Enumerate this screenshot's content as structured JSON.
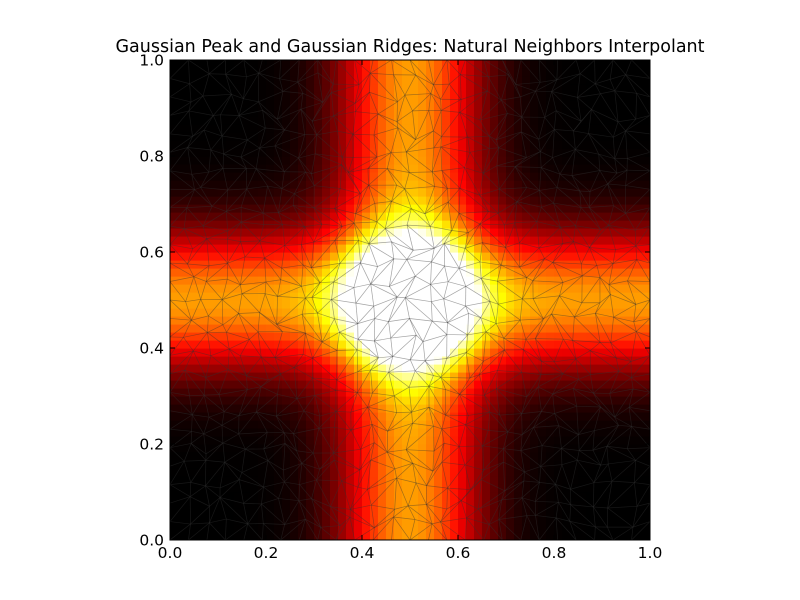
{
  "chart_data": {
    "type": "heatmap",
    "title": "Gaussian Peak and Gaussian Ridges: Natural Neighbors Interpolant",
    "xlabel": "",
    "ylabel": "",
    "xlim": [
      0.0,
      1.0
    ],
    "ylim": [
      0.0,
      1.0
    ],
    "x_ticks": [
      "0.0",
      "0.2",
      "0.4",
      "0.6",
      "0.8",
      "1.0"
    ],
    "y_ticks": [
      "0.0",
      "0.2",
      "0.4",
      "0.6",
      "0.8",
      "1.0"
    ],
    "colormap": "hot",
    "grid": false,
    "legend": "none",
    "overlay": "triangulation mesh",
    "function": {
      "peak": {
        "center": [
          0.5,
          0.5
        ],
        "amplitude": 1.0
      },
      "ridges": [
        {
          "orientation": "vertical",
          "center": 0.5,
          "amplitude": 0.6
        },
        {
          "orientation": "horizontal",
          "center": 0.5,
          "amplitude": 0.6
        }
      ]
    }
  },
  "colors": {
    "low": "#000000",
    "mid": "#ff0000",
    "high": "#ffff00",
    "max": "#ffffff",
    "mesh": "#333333"
  }
}
